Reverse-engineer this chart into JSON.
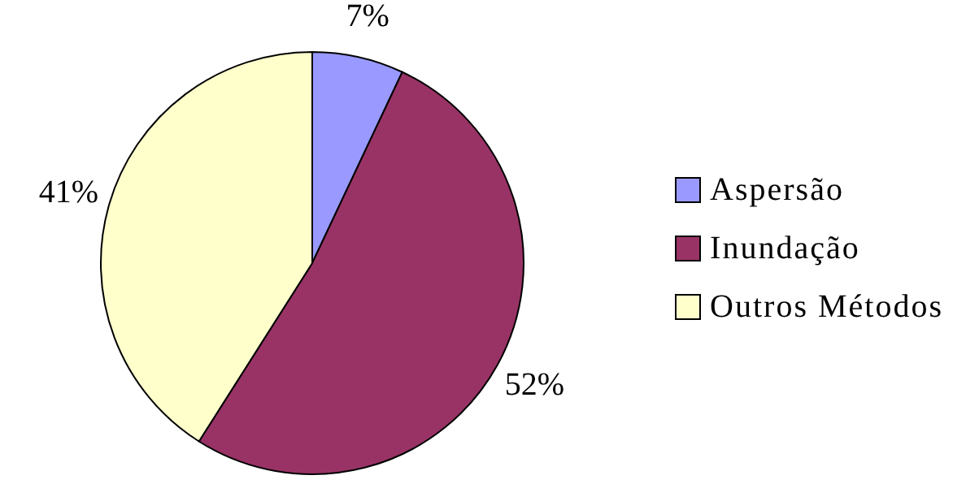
{
  "chart_data": {
    "type": "pie",
    "categories": [
      "Aspersão",
      "Inundação",
      "Outros Métodos"
    ],
    "values": [
      7,
      52,
      41
    ],
    "colors": [
      "#9999ff",
      "#993366",
      "#ffffcc"
    ],
    "value_labels": [
      "7%",
      "52%",
      "41%"
    ],
    "legend": "right"
  }
}
